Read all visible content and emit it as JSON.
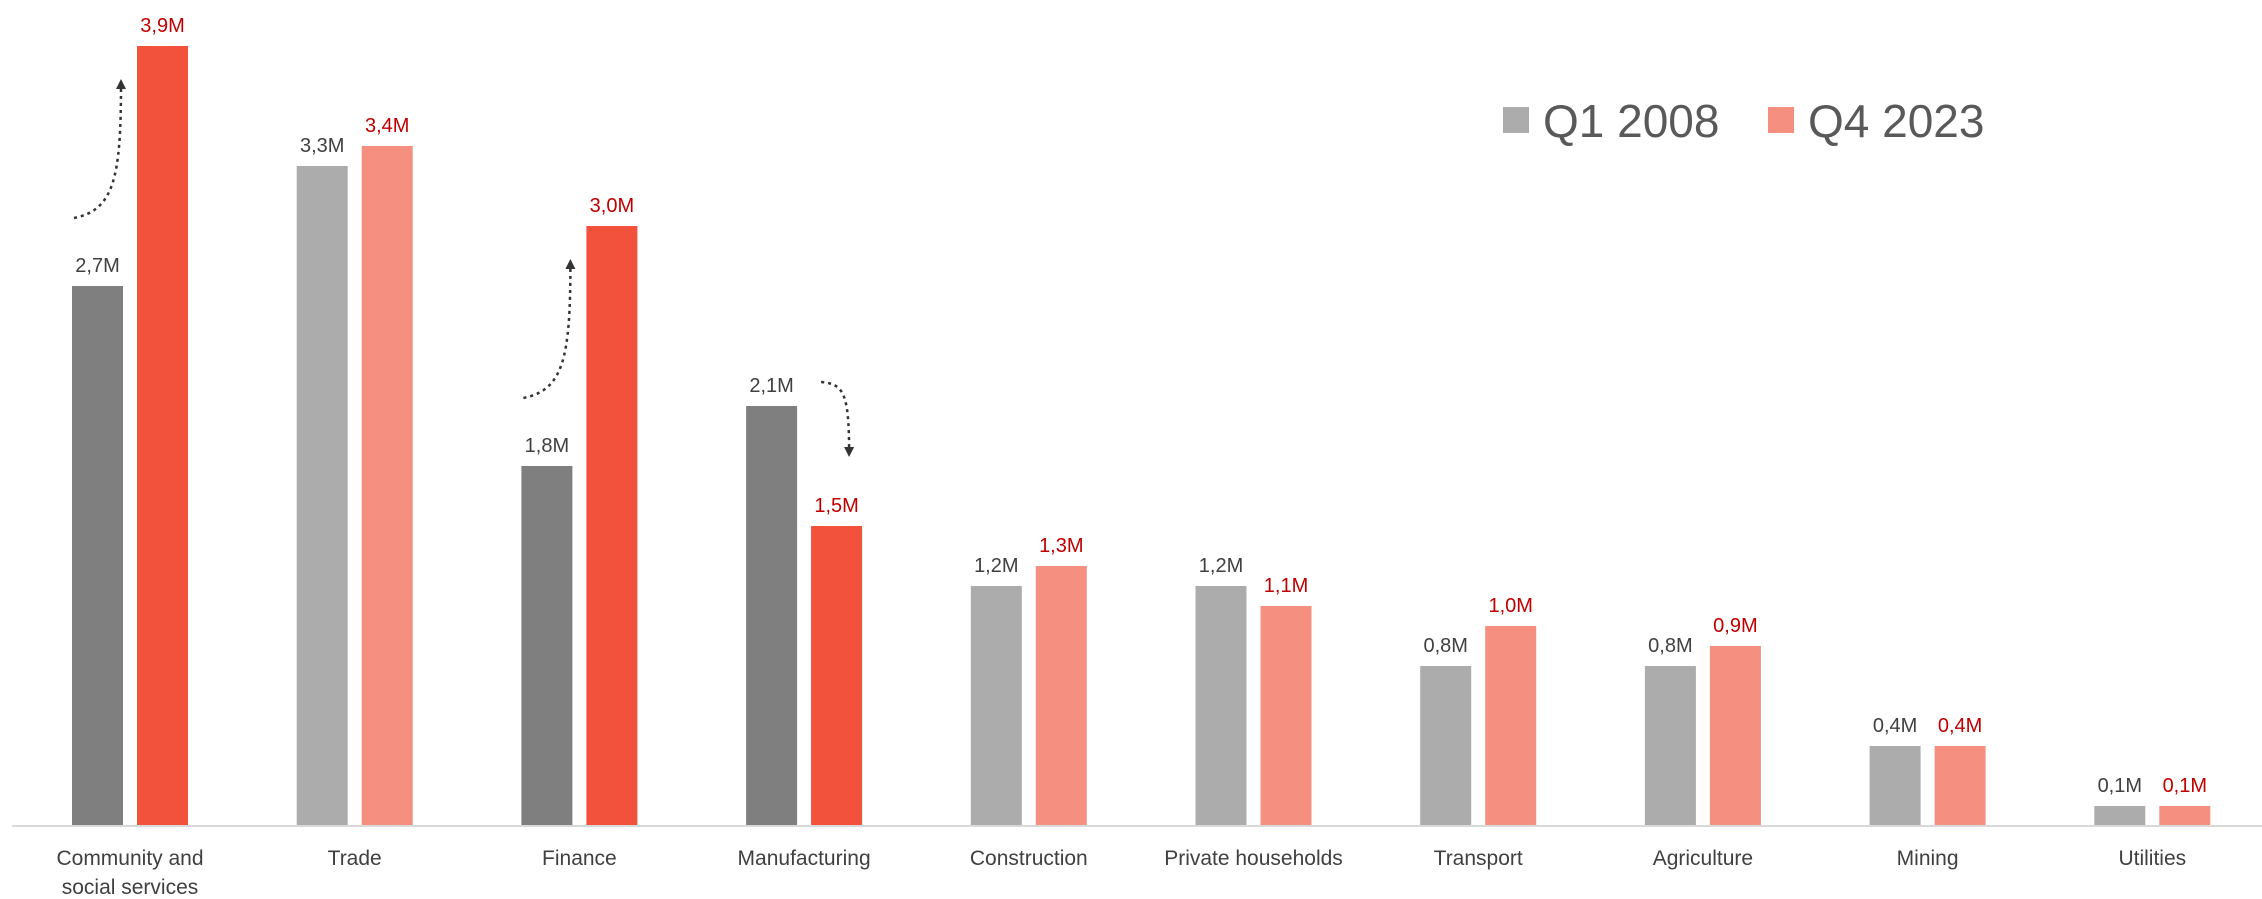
{
  "chart_data": {
    "type": "bar",
    "categories": [
      [
        "Community and",
        "social services"
      ],
      [
        "Trade"
      ],
      [
        "Finance"
      ],
      [
        "Manufacturing"
      ],
      [
        "Construction"
      ],
      [
        "Private households"
      ],
      [
        "Transport"
      ],
      [
        "Agriculture"
      ],
      [
        "Mining"
      ],
      [
        "Utilities"
      ]
    ],
    "series": [
      {
        "name": "Q1 2008",
        "values": [
          2.7,
          3.3,
          1.8,
          2.1,
          1.2,
          1.2,
          0.8,
          0.8,
          0.4,
          0.1
        ],
        "labels": [
          "2,7M",
          "3,3M",
          "1,8M",
          "2,1M",
          "1,2M",
          "1,2M",
          "0,8M",
          "0,8M",
          "0,4M",
          "0,1M"
        ]
      },
      {
        "name": "Q4 2023",
        "values": [
          3.9,
          3.4,
          3.0,
          1.5,
          1.3,
          1.1,
          1.0,
          0.9,
          0.4,
          0.1
        ],
        "labels": [
          "3,9M",
          "3,4M",
          "3,0M",
          "1,5M",
          "1,3M",
          "1,1M",
          "1,0M",
          "0,9M",
          "0,4M",
          "0,1M"
        ]
      }
    ],
    "ylim": [
      0,
      4.0
    ],
    "grid": false,
    "legend": "top-right",
    "highlighted_categories": [
      0,
      2,
      3
    ],
    "annotations": [
      {
        "category": 0,
        "direction": "up"
      },
      {
        "category": 2,
        "direction": "up"
      },
      {
        "category": 3,
        "direction": "down"
      }
    ],
    "colors": {
      "old_highlight": "#7f7f7f",
      "new_highlight": "#f2513b",
      "old_normal": "#acacac",
      "new_normal": "#f59080",
      "legend_old": "#acacac",
      "legend_new": "#f59080",
      "label_old": "#404040",
      "label_new": "#c00000",
      "axis": "#d9d9d9"
    }
  }
}
